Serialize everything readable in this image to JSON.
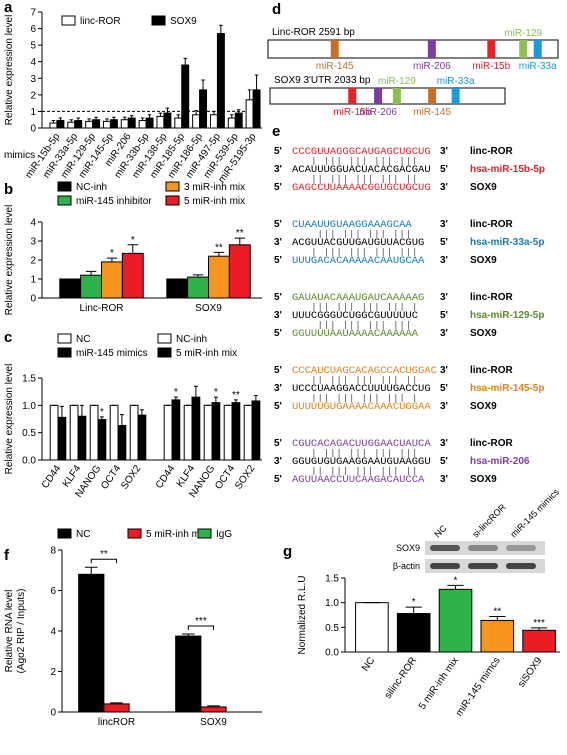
{
  "chart_data": [
    {
      "type": "bar",
      "panel": "a",
      "ylabel": "Relative expression level",
      "xlabel": "mimics",
      "categories": [
        "miR-15b-5p",
        "miR-33a-5p",
        "miR-129-5p",
        "miR-145-5p",
        "miR-206",
        "miR-33b-5p",
        "miR-138-5p",
        "miR-185-5p",
        "miR-186-5p",
        "miR-497-5p",
        "miR-539-5p",
        "miR-5195-3p"
      ],
      "series": [
        {
          "name": "linc-ROR",
          "color": "#ffffff",
          "values": [
            0.3,
            0.35,
            0.4,
            0.4,
            0.5,
            0.45,
            0.7,
            0.6,
            0.8,
            0.8,
            0.6,
            1.7
          ],
          "errors": [
            0.15,
            0.15,
            0.15,
            0.15,
            0.15,
            0.15,
            0.2,
            0.2,
            0.25,
            0.2,
            0.2,
            0.6
          ]
        },
        {
          "name": "SOX9",
          "color": "#000000",
          "values": [
            0.45,
            0.45,
            0.5,
            0.5,
            0.6,
            0.6,
            0.9,
            3.8,
            2.3,
            5.7,
            0.9,
            2.3
          ],
          "errors": [
            0.15,
            0.15,
            0.15,
            0.15,
            0.15,
            0.2,
            0.3,
            0.4,
            0.6,
            0.5,
            0.2,
            0.9
          ]
        }
      ],
      "ylim": [
        0,
        7
      ],
      "yticks": [
        0,
        1,
        2,
        3,
        4,
        5,
        6,
        7
      ],
      "reference_line": 1
    },
    {
      "type": "bar",
      "panel": "b",
      "ylabel": "Relative expression level",
      "categories": [
        "Linc-ROR",
        "SOX9"
      ],
      "series": [
        {
          "name": "NC-inh",
          "color": "#000000",
          "values": [
            1,
            1
          ],
          "errors": [
            0,
            0
          ]
        },
        {
          "name": "miR-145 inhibitor",
          "color": "#2db34a",
          "values": [
            1.2,
            1.1
          ],
          "errors": [
            0.2,
            0.12
          ]
        },
        {
          "name": "3 miR-inh mix",
          "color": "#f7941d",
          "values": [
            1.9,
            2.2
          ],
          "errors": [
            0.2,
            0.2
          ],
          "significance": [
            "*",
            "**"
          ]
        },
        {
          "name": "5 miR-inh mix",
          "color": "#ed1c24",
          "values": [
            2.35,
            2.8
          ],
          "errors": [
            0.45,
            0.35
          ],
          "significance": [
            "*",
            "**"
          ]
        }
      ],
      "ylim": [
        0,
        4
      ],
      "yticks": [
        0,
        1,
        2,
        3,
        4
      ]
    },
    {
      "type": "bar",
      "panel": "c",
      "ylabel": "Relative expression level",
      "categories": [
        "CD44",
        "KLF4",
        "NANOG",
        "OCT4",
        "SOX2",
        "CD44",
        "KLF4",
        "NANOG",
        "OCT4",
        "SOX2"
      ],
      "series": [
        {
          "name": "NC",
          "color": "#ffffff",
          "values": [
            1,
            1,
            1,
            1,
            1,
            null,
            null,
            null,
            null,
            null
          ],
          "errors": [
            0,
            0,
            0,
            0,
            0,
            null,
            null,
            null,
            null,
            null
          ]
        },
        {
          "name": "miR-145 mimics",
          "color": "#000000",
          "values": [
            0.78,
            0.8,
            0.74,
            0.63,
            0.82,
            null,
            null,
            null,
            null,
            null
          ],
          "errors": [
            0.2,
            0.2,
            0.05,
            0.2,
            0.1,
            null,
            null,
            null,
            null,
            null
          ],
          "significance": [
            null,
            null,
            "*",
            null,
            null,
            null,
            null,
            null,
            null,
            null
          ]
        },
        {
          "name": "NC-inh",
          "color": "#ffffff",
          "values": [
            null,
            null,
            null,
            null,
            null,
            1,
            1,
            1,
            1,
            1
          ],
          "errors": [
            null,
            null,
            null,
            null,
            null,
            0,
            0,
            0,
            0,
            0
          ]
        },
        {
          "name": "5 miR-inh mix",
          "color": "#000000",
          "values": [
            null,
            null,
            null,
            null,
            null,
            1.1,
            1.15,
            1.05,
            1.05,
            1.08
          ],
          "errors": [
            null,
            null,
            null,
            null,
            null,
            0.05,
            0.2,
            0.1,
            0.05,
            0.1
          ],
          "significance": [
            null,
            null,
            null,
            null,
            null,
            "*",
            null,
            "*",
            "**",
            null
          ]
        }
      ],
      "ylim": [
        0,
        1.5
      ],
      "yticks": [
        {
          "value": 0,
          "label": "0.0"
        },
        {
          "value": 0.5,
          "label": "0.5"
        },
        {
          "value": 1,
          "label": "1.0"
        },
        {
          "value": 1.5,
          "label": "1.5"
        }
      ]
    },
    {
      "type": "bar",
      "panel": "f",
      "ylabel": [
        "Relative RNA level",
        "(Ago2 RIP / Inputs)"
      ],
      "categories": [
        "lincROR",
        "SOX9"
      ],
      "series": [
        {
          "name": "NC",
          "color": "#000000",
          "values": [
            6.8,
            3.75
          ],
          "errors": [
            0.35,
            0.1
          ]
        },
        {
          "name": "5 miR-inh mix",
          "color": "#ed1c24",
          "values": [
            0.4,
            0.25
          ],
          "errors": [
            0.05,
            0.05
          ],
          "significance": [
            "**",
            "***"
          ]
        },
        {
          "name": "IgG",
          "color": "#2db34a",
          "values": [
            0,
            0
          ]
        }
      ],
      "ylim": [
        0,
        8
      ],
      "yticks": [
        0,
        2,
        4,
        6,
        8
      ]
    },
    {
      "type": "bar",
      "panel": "g",
      "ylabel": "Normalized R.L.U",
      "categories": [
        "NC",
        "silinc-ROR",
        "5 miR-inh mix",
        "miR-145 mimcs",
        "siSOX9"
      ],
      "values": [
        1,
        0.78,
        1.27,
        0.64,
        0.44
      ],
      "errors": [
        0,
        0.13,
        0.08,
        0.08,
        0.05
      ],
      "colors": [
        "#ffffff",
        "#000000",
        "#2db34a",
        "#f7941d",
        "#ed1c24"
      ],
      "significance": [
        null,
        "*",
        "*",
        "**",
        "***"
      ],
      "ylim": [
        0,
        1.5
      ],
      "yticks": [
        {
          "value": 0,
          "label": "0.0"
        },
        {
          "value": 0.5,
          "label": "0.5"
        },
        {
          "value": 1,
          "label": "1.0"
        },
        {
          "value": 1.5,
          "label": "1.5"
        }
      ],
      "blot": {
        "lanes": [
          "NC",
          "si-lincROR",
          "miR-145 mimics"
        ],
        "bands": [
          "SOX9",
          "β-actin"
        ]
      }
    }
  ],
  "diagram_d": {
    "panel": "d",
    "sequences": [
      {
        "label": "Linc-ROR  2591 bp",
        "sites": [
          {
            "name": "miR-145",
            "color": "#c8702a"
          },
          {
            "name": "miR-206",
            "color": "#7b3fa0"
          },
          {
            "name": "miR-15b",
            "color": "#e8202a"
          },
          {
            "name": "miR-129",
            "color": "#8cc152"
          },
          {
            "name": "miR-33a",
            "color": "#1a9ad8"
          }
        ]
      },
      {
        "label": "SOX9 3'UTR 2033 bp",
        "sites": [
          {
            "name": "miR-15b",
            "color": "#e8202a"
          },
          {
            "name": "miR-206",
            "color": "#7b3fa0"
          },
          {
            "name": "miR-129",
            "color": "#8cc152"
          },
          {
            "name": "miR-145",
            "color": "#c8702a"
          },
          {
            "name": "miR-33a",
            "color": "#1a9ad8"
          }
        ]
      }
    ]
  },
  "alignments_e": {
    "panel": "e",
    "ends": [
      "5'",
      "3'"
    ],
    "blocks": [
      {
        "top": "CCCGUUAGGGCAUGAGCUGCUG",
        "middle": "ACAUUUGGUACUACACGACGAU",
        "bottom": "GAGCCUUAAAACGGUGCUGCUG",
        "top_label": "linc-ROR",
        "mirna": "hsa-miR-15b-5p",
        "bottom_label": "SOX9",
        "color": "#e8202a"
      },
      {
        "top": "CUAAUUGUAAGGAAAGCAA",
        "middle": "ACGUUACGUUGAUGUUACGUG",
        "bottom": "UUUGACACAAAAACAAUGCAA",
        "top_label": "linc-ROR",
        "mirna": "hsa-miR-33a-5p",
        "bottom_label": "SOX9",
        "color": "#1a7ab8"
      },
      {
        "top": "GAUAUACAAAUGAUCAAAAAG",
        "middle": "UUUCGGGUCUGGCGUUUUUC",
        "bottom": "GGUUUUAAUAAAACAAAAAA",
        "top_label": "linc-ROR",
        "mirna": "hsa-miR-129-5p",
        "bottom_label": "SOX9",
        "color": "#5a8a2a"
      },
      {
        "top": "CCCAUCUAGCACAGCCACUGGAC",
        "middle": "UCCCUAAGGACCUUUUGACCUG",
        "bottom": "UUUUUGUGAAAACAAACUGGAA",
        "top_label": "linc-ROR",
        "mirna": "hsa-miR-145-5p",
        "bottom_label": "SOX9",
        "color": "#e8801a"
      },
      {
        "top": "CGUCACAGACUUGGAACUAUCA",
        "middle": "GGUGUGUGAAGGAAUGUAAGGU",
        "bottom": "AGUUAACCUUCAAGACAUCCA",
        "top_label": "linc-ROR",
        "mirna": "hsa-miR-206",
        "bottom_label": "SOX9",
        "color": "#7b3fa0"
      }
    ]
  }
}
